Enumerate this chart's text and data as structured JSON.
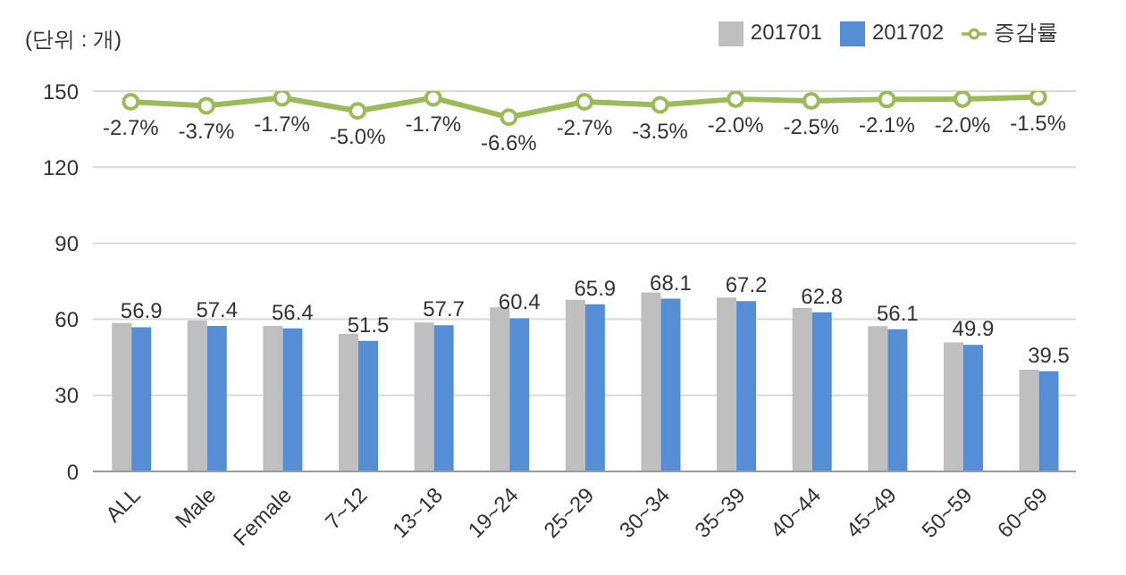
{
  "chart_data": {
    "type": "bar",
    "ylabel": "(단위 : 개)",
    "categories": [
      "ALL",
      "Male",
      "Female",
      "7~12",
      "13~18",
      "19~24",
      "25~29",
      "30~34",
      "35~39",
      "40~44",
      "45~49",
      "50~59",
      "60~69"
    ],
    "series": [
      {
        "name": "201701",
        "color": "#bfbfbf",
        "values": [
          58.5,
          59.6,
          57.4,
          54.2,
          58.7,
          64.7,
          67.7,
          70.6,
          68.6,
          64.4,
          57.3,
          50.9,
          40.1
        ]
      },
      {
        "name": "201702",
        "color": "#558ed5",
        "values": [
          56.9,
          57.4,
          56.4,
          51.5,
          57.7,
          60.4,
          65.9,
          68.1,
          67.2,
          62.8,
          56.1,
          49.9,
          39.5
        ],
        "value_labels": [
          "56.9",
          "57.4",
          "56.4",
          "51.5",
          "57.7",
          "60.4",
          "65.9",
          "68.1",
          "67.2",
          "62.8",
          "56.1",
          "49.9",
          "39.5"
        ]
      },
      {
        "name": "증감률",
        "type": "line",
        "axis": "y2",
        "color": "#9bbb59",
        "marker": "circle",
        "values": [
          -2.7,
          -3.7,
          -1.7,
          -5.0,
          -1.7,
          -6.6,
          -2.7,
          -3.5,
          -2.0,
          -2.5,
          -2.1,
          -2.0,
          -1.5
        ],
        "value_labels": [
          "-2.7%",
          "-3.7%",
          "-1.7%",
          "-5.0%",
          "-1.7%",
          "-6.6%",
          "-2.7%",
          "-3.5%",
          "-2.0%",
          "-2.5%",
          "-2.1%",
          "-2.0%",
          "-1.5%"
        ]
      }
    ],
    "ylim": [
      0,
      150
    ],
    "yticks": [
      0,
      30,
      60,
      90,
      120,
      150
    ],
    "y2lim": [
      -96,
      0
    ],
    "grid": "y",
    "legend": "top right",
    "tick_labels": "xy"
  }
}
